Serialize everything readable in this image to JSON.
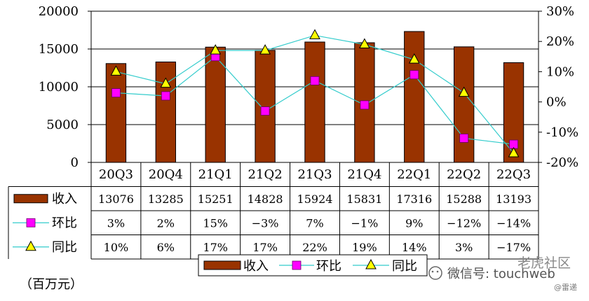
{
  "chart_data": {
    "type": "bar",
    "categories": [
      "20Q3",
      "20Q4",
      "21Q1",
      "21Q2",
      "21Q3",
      "21Q4",
      "22Q1",
      "22Q2",
      "22Q3"
    ],
    "series": [
      {
        "name": "收入",
        "kind": "bar",
        "axis": "left",
        "color": "#993300",
        "values": [
          13076,
          13285,
          15251,
          14828,
          15924,
          15831,
          17316,
          15288,
          13193
        ]
      },
      {
        "name": "环比",
        "kind": "line",
        "axis": "right",
        "color": "#33cccc",
        "marker": "square",
        "marker_color": "#ff00ff",
        "values": [
          3,
          2,
          15,
          -3,
          7,
          -1,
          9,
          -12,
          -14
        ]
      },
      {
        "name": "同比",
        "kind": "line",
        "axis": "right",
        "color": "#33cccc",
        "marker": "triangle",
        "marker_color": "#ffff00",
        "values": [
          10,
          6,
          17,
          17,
          22,
          19,
          14,
          3,
          -17
        ]
      }
    ],
    "table_rows": [
      {
        "label": "收入",
        "cells": [
          "13076",
          "13285",
          "15251",
          "14828",
          "15924",
          "15831",
          "17316",
          "15288",
          "13193"
        ]
      },
      {
        "label": "环比",
        "cells": [
          "3%",
          "2%",
          "15%",
          "−3%",
          "7%",
          "−1%",
          "9%",
          "−12%",
          "−14%"
        ]
      },
      {
        "label": "同比",
        "cells": [
          "10%",
          "6%",
          "17%",
          "17%",
          "22%",
          "19%",
          "14%",
          "3%",
          "−17%"
        ]
      }
    ],
    "left_axis": {
      "ylim": [
        0,
        20000
      ],
      "ticks": [
        "0",
        "5000",
        "10000",
        "15000",
        "20000"
      ],
      "tick_values": [
        0,
        5000,
        10000,
        15000,
        20000
      ]
    },
    "right_axis": {
      "ylim": [
        -20,
        30
      ],
      "ticks": [
        "-20%",
        "-10%",
        "0%",
        "10%",
        "20%",
        "30%"
      ],
      "tick_values": [
        -20,
        -10,
        0,
        10,
        20,
        30
      ]
    },
    "grid": true,
    "legend": {
      "position": "bottom-center",
      "entries": [
        "收入",
        "环比",
        "同比"
      ]
    },
    "unit_label": "（百万元）"
  },
  "watermark": {
    "main": "微信号: touchweb",
    "brand": "老虎社区",
    "credit": "@雷递"
  }
}
